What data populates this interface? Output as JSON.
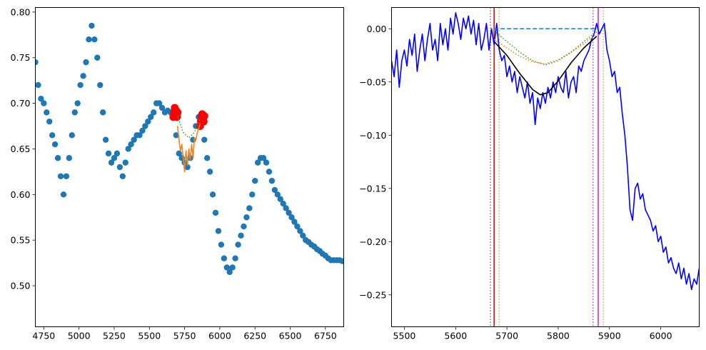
{
  "chart_data": [
    {
      "type": "scatter",
      "title": "",
      "xlabel": "",
      "ylabel": "",
      "xlim": [
        4690,
        6880
      ],
      "ylim": [
        0.455,
        0.805
      ],
      "xticks": [
        4750,
        5000,
        5250,
        5500,
        5750,
        6000,
        6250,
        6500,
        6750
      ],
      "xtick_labels": [
        "4750",
        "5000",
        "5250",
        "5500",
        "5750",
        "6000",
        "6250",
        "6500",
        "6750"
      ],
      "yticks": [
        0.5,
        0.55,
        0.6,
        0.65,
        0.7,
        0.75,
        0.8
      ],
      "ytick_labels": [
        "0.50",
        "0.55",
        "0.60",
        "0.65",
        "0.70",
        "0.75",
        "0.80"
      ],
      "colors": {
        "spectrum": "#1f77b4",
        "continuum_points": "#ff0000",
        "fit": "#ff7f0e",
        "fit_dotted": "#2ca02c"
      },
      "series": [
        {
          "name": "spectrum",
          "style": "scatter",
          "x": [
            4690,
            4710,
            4730,
            4750,
            4770,
            4790,
            4810,
            4830,
            4850,
            4870,
            4890,
            4910,
            4930,
            4950,
            4970,
            4990,
            5010,
            5030,
            5050,
            5070,
            5090,
            5110,
            5130,
            5150,
            5170,
            5190,
            5210,
            5230,
            5250,
            5270,
            5290,
            5310,
            5330,
            5350,
            5370,
            5390,
            5410,
            5430,
            5450,
            5470,
            5490,
            5510,
            5530,
            5550,
            5570,
            5590,
            5610,
            5630,
            5650,
            5670,
            5690,
            5710,
            5730,
            5750,
            5770,
            5790,
            5810,
            5830,
            5850,
            5870,
            5890,
            5910,
            5930,
            5950,
            5970,
            5990,
            6010,
            6030,
            6050,
            6070,
            6090,
            6110,
            6130,
            6150,
            6170,
            6190,
            6210,
            6230,
            6250,
            6270,
            6290,
            6310,
            6330,
            6350,
            6370,
            6390,
            6410,
            6430,
            6450,
            6470,
            6490,
            6510,
            6530,
            6550,
            6570,
            6590,
            6610,
            6630,
            6650,
            6670,
            6690,
            6710,
            6730,
            6750,
            6770,
            6790,
            6810,
            6830,
            6850,
            6870
          ],
          "y": [
            0.745,
            0.72,
            0.705,
            0.7,
            0.69,
            0.68,
            0.665,
            0.655,
            0.64,
            0.62,
            0.6,
            0.62,
            0.64,
            0.665,
            0.69,
            0.7,
            0.72,
            0.73,
            0.745,
            0.77,
            0.785,
            0.77,
            0.75,
            0.72,
            0.69,
            0.66,
            0.645,
            0.635,
            0.64,
            0.645,
            0.63,
            0.62,
            0.635,
            0.65,
            0.655,
            0.66,
            0.665,
            0.665,
            0.67,
            0.675,
            0.68,
            0.685,
            0.69,
            0.7,
            0.7,
            0.695,
            0.69,
            0.692,
            0.69,
            0.685,
            0.665,
            0.645,
            0.64,
            0.635,
            0.63,
            0.64,
            0.66,
            0.675,
            0.685,
            0.68,
            0.66,
            0.64,
            0.625,
            0.6,
            0.58,
            0.56,
            0.545,
            0.53,
            0.52,
            0.515,
            0.52,
            0.53,
            0.545,
            0.555,
            0.565,
            0.575,
            0.585,
            0.6,
            0.615,
            0.635,
            0.64,
            0.64,
            0.635,
            0.625,
            0.615,
            0.605,
            0.6,
            0.595,
            0.59,
            0.585,
            0.58,
            0.575,
            0.57,
            0.565,
            0.56,
            0.555,
            0.55,
            0.548,
            0.545,
            0.543,
            0.54,
            0.538,
            0.535,
            0.533,
            0.53,
            0.528,
            0.528,
            0.528,
            0.528,
            0.527
          ]
        },
        {
          "name": "continuum-points",
          "style": "scatter",
          "x": [
            5670,
            5675,
            5680,
            5685,
            5690,
            5695,
            5700,
            5860,
            5865,
            5870,
            5875,
            5880,
            5885,
            5890
          ],
          "y": [
            0.685,
            0.69,
            0.695,
            0.688,
            0.692,
            0.685,
            0.69,
            0.675,
            0.68,
            0.685,
            0.688,
            0.684,
            0.68,
            0.686
          ]
        },
        {
          "name": "fit-line",
          "style": "line",
          "x": [
            5700,
            5710,
            5720,
            5730,
            5740,
            5750,
            5760,
            5770,
            5780,
            5790,
            5800,
            5810,
            5820,
            5830,
            5840,
            5850,
            5860
          ],
          "y": [
            0.675,
            0.66,
            0.648,
            0.655,
            0.64,
            0.625,
            0.648,
            0.632,
            0.65,
            0.638,
            0.655,
            0.64,
            0.662,
            0.66,
            0.668,
            0.672,
            0.678
          ]
        },
        {
          "name": "fit-dotted",
          "style": "dotted",
          "x": [
            5700,
            5740,
            5780,
            5820,
            5860
          ],
          "y": [
            0.686,
            0.668,
            0.662,
            0.668,
            0.684
          ]
        }
      ]
    },
    {
      "type": "line",
      "title": "",
      "xlabel": "",
      "ylabel": "",
      "xlim": [
        5475,
        6075
      ],
      "ylim": [
        -0.28,
        0.02
      ],
      "xticks": [
        5500,
        5600,
        5700,
        5800,
        5900,
        6000
      ],
      "xtick_labels": [
        "5500",
        "5600",
        "5700",
        "5800",
        "5900",
        "6000"
      ],
      "yticks": [
        0.0,
        -0.05,
        -0.1,
        -0.15,
        -0.2,
        -0.25
      ],
      "ytick_labels": [
        "0.00",
        "−0.05",
        "−0.10",
        "−0.15",
        "−0.20",
        "−0.25"
      ],
      "colors": {
        "spectrum": "#0000ff",
        "dashed": "#1f77b4",
        "dotted_orange": "#ff7f0e",
        "dotted_green": "#2ca02c",
        "model": "#000000",
        "vline_red": "#b22222",
        "vline_magenta": "#cc33cc",
        "vline_olive": "#bcbd22"
      },
      "series": [
        {
          "name": "spectrum",
          "style": "line",
          "x": [
            5475,
            5480,
            5485,
            5490,
            5495,
            5500,
            5505,
            5510,
            5515,
            5520,
            5525,
            5530,
            5535,
            5540,
            5545,
            5550,
            5555,
            5560,
            5565,
            5570,
            5575,
            5580,
            5585,
            5590,
            5595,
            5600,
            5605,
            5610,
            5615,
            5620,
            5625,
            5630,
            5635,
            5640,
            5645,
            5650,
            5655,
            5660,
            5665,
            5670,
            5675,
            5680,
            5685,
            5690,
            5695,
            5700,
            5705,
            5710,
            5715,
            5720,
            5725,
            5730,
            5735,
            5740,
            5745,
            5750,
            5755,
            5760,
            5765,
            5770,
            5775,
            5780,
            5785,
            5790,
            5795,
            5800,
            5805,
            5810,
            5815,
            5820,
            5825,
            5830,
            5835,
            5840,
            5845,
            5850,
            5855,
            5860,
            5865,
            5870,
            5875,
            5880,
            5885,
            5890,
            5895,
            5900,
            5905,
            5910,
            5915,
            5920,
            5925,
            5930,
            5935,
            5940,
            5945,
            5950,
            5955,
            5960,
            5965,
            5970,
            5975,
            5980,
            5985,
            5990,
            5995,
            6000,
            6005,
            6010,
            6015,
            6020,
            6025,
            6030,
            6035,
            6040,
            6045,
            6050,
            6055,
            6060,
            6065,
            6070,
            6075
          ],
          "y": [
            -0.03,
            -0.045,
            -0.02,
            -0.055,
            -0.03,
            -0.02,
            -0.035,
            -0.01,
            -0.025,
            -0.005,
            -0.04,
            -0.02,
            -0.005,
            -0.03,
            -0.01,
            0.005,
            -0.02,
            -0.01,
            -0.03,
            0.005,
            -0.015,
            0.0,
            -0.02,
            0.01,
            -0.005,
            0.015,
            0.005,
            -0.01,
            0.01,
            0.0,
            0.012,
            -0.005,
            0.008,
            -0.015,
            0.005,
            -0.02,
            -0.01,
            0.005,
            -0.02,
            0.0,
            -0.015,
            0.005,
            -0.02,
            -0.03,
            -0.025,
            -0.045,
            -0.035,
            -0.05,
            -0.04,
            -0.06,
            -0.045,
            -0.055,
            -0.065,
            -0.05,
            -0.07,
            -0.06,
            -0.09,
            -0.065,
            -0.075,
            -0.06,
            -0.07,
            -0.055,
            -0.065,
            -0.05,
            -0.06,
            -0.045,
            -0.055,
            -0.06,
            -0.04,
            -0.065,
            -0.05,
            -0.045,
            -0.06,
            -0.035,
            -0.04,
            -0.03,
            -0.025,
            -0.02,
            -0.01,
            -0.005,
            0.005,
            -0.005,
            0.0,
            0.005,
            -0.02,
            -0.03,
            -0.045,
            -0.04,
            -0.06,
            -0.055,
            -0.08,
            -0.1,
            -0.13,
            -0.17,
            -0.18,
            -0.15,
            -0.145,
            -0.16,
            -0.155,
            -0.17,
            -0.175,
            -0.18,
            -0.19,
            -0.185,
            -0.2,
            -0.195,
            -0.21,
            -0.205,
            -0.22,
            -0.215,
            -0.225,
            -0.23,
            -0.22,
            -0.235,
            -0.225,
            -0.24,
            -0.23,
            -0.245,
            -0.235,
            -0.24,
            -0.225
          ]
        },
        {
          "name": "continuum-dashed",
          "style": "dashed",
          "x": [
            5675,
            5880
          ],
          "y": [
            0.0,
            0.0
          ]
        },
        {
          "name": "fit-dotted-orange",
          "style": "dotted",
          "x": [
            5675,
            5700,
            5725,
            5750,
            5775,
            5800,
            5825,
            5850,
            5875
          ],
          "y": [
            -0.01,
            -0.018,
            -0.026,
            -0.031,
            -0.033,
            -0.029,
            -0.022,
            -0.014,
            -0.005
          ]
        },
        {
          "name": "fit-dotted-green",
          "style": "dotted",
          "x": [
            5675,
            5700,
            5725,
            5750,
            5775,
            5800,
            5825,
            5850,
            5875
          ],
          "y": [
            -0.002,
            -0.012,
            -0.022,
            -0.03,
            -0.034,
            -0.03,
            -0.022,
            -0.012,
            -0.003
          ]
        },
        {
          "name": "model-curve",
          "style": "line",
          "x": [
            5675,
            5700,
            5725,
            5750,
            5765,
            5780,
            5800,
            5825,
            5850,
            5875
          ],
          "y": [
            -0.012,
            -0.025,
            -0.042,
            -0.057,
            -0.062,
            -0.06,
            -0.049,
            -0.032,
            -0.018,
            -0.007
          ]
        }
      ],
      "vlines": [
        {
          "name": "vline-red-solid",
          "x": 5675,
          "color": "#b22222",
          "style": "solid"
        },
        {
          "name": "vline-magenta-solid",
          "x": 5878,
          "color": "#cc33cc",
          "style": "solid"
        },
        {
          "name": "vline-magenta-dotted-left",
          "x": 5668,
          "color": "#cc33cc",
          "style": "dotted"
        },
        {
          "name": "vline-olive-dotted-left",
          "x": 5685,
          "color": "#bcbd22",
          "style": "dotted"
        },
        {
          "name": "vline-magenta-dotted-right",
          "x": 5868,
          "color": "#cc33cc",
          "style": "dotted"
        },
        {
          "name": "vline-olive-dotted-right",
          "x": 5888,
          "color": "#bcbd22",
          "style": "dotted"
        }
      ]
    }
  ]
}
